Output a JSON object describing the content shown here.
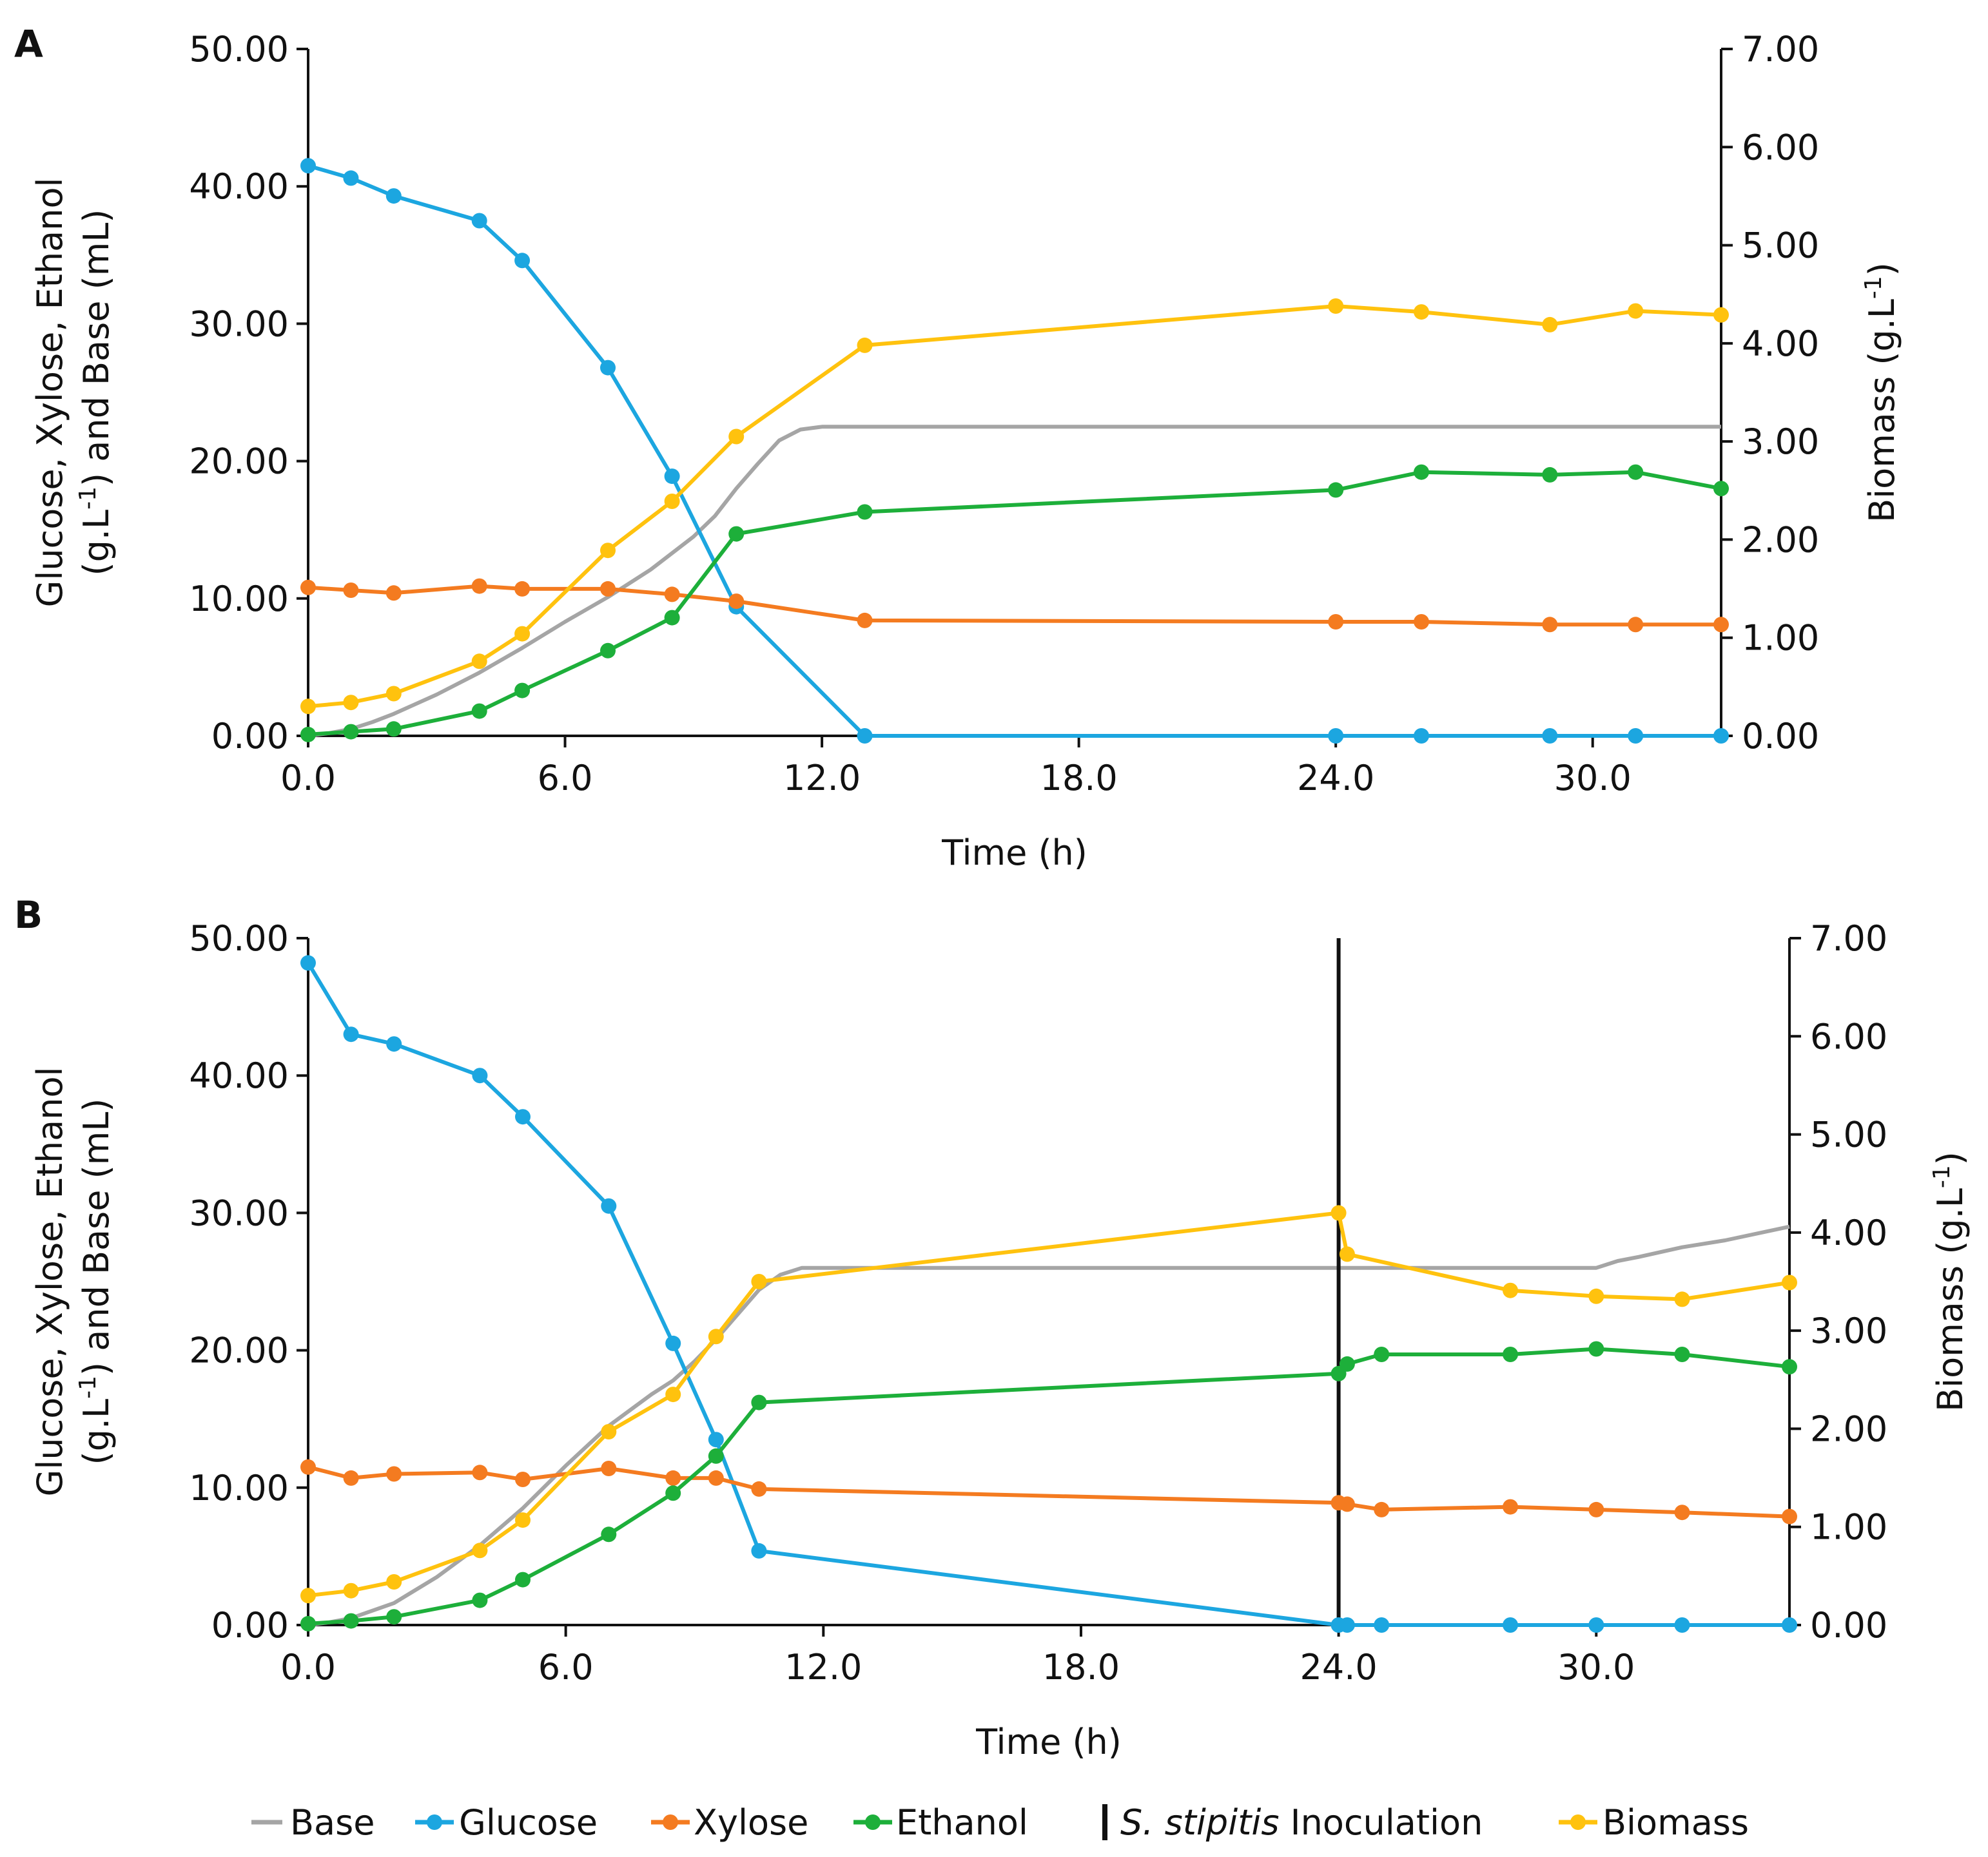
{
  "colors": {
    "base": "#A5A5A5",
    "glucose": "#1CA6E0",
    "xylose": "#F47B20",
    "ethanol": "#1DAF3A",
    "biomass": "#FFC20E",
    "inoculation": "#111111",
    "axis": "#111111"
  },
  "legend": {
    "base": "Base",
    "glucose": "Glucose",
    "xylose": "Xylose",
    "ethanol": "Ethanol",
    "inoculation_italic": "S. stipitis",
    "inoculation_rest": " Inoculation",
    "biomass": "Biomass"
  },
  "chart_data": [
    {
      "type": "line",
      "panel": "A",
      "xlabel": "Time (h)",
      "ylabel_line1": "Glucose, Xylose, Ethanol",
      "ylabel_line2_pre": "(g.L",
      "ylabel_line2_sup": "-1",
      "ylabel_line2_post": ") and Base (mL)",
      "y2label_pre": "Biomass (g.L",
      "y2label_sup": "-1",
      "y2label_post": ")",
      "xlim": [
        0,
        33
      ],
      "ylim": [
        0,
        50
      ],
      "y2lim": [
        0,
        7
      ],
      "xticks": [
        0,
        6,
        12,
        18,
        24,
        30
      ],
      "xtick_labels": [
        "0.0",
        "6.0",
        "12.0",
        "18.0",
        "24.0",
        "30.0"
      ],
      "yticks": [
        0,
        10,
        20,
        30,
        40,
        50
      ],
      "ytick_labels": [
        "0.00",
        "10.00",
        "20.00",
        "30.00",
        "40.00",
        "50.00"
      ],
      "y2ticks": [
        0,
        1,
        2,
        3,
        4,
        5,
        6,
        7
      ],
      "y2tick_labels": [
        "0.00",
        "1.00",
        "2.00",
        "3.00",
        "4.00",
        "5.00",
        "6.00",
        "7.00"
      ],
      "base": {
        "x": [
          0,
          0.5,
          1,
          1.5,
          2,
          3,
          4,
          5,
          6,
          7,
          8,
          9,
          9.5,
          10,
          10.5,
          11,
          11.5,
          12,
          13,
          18,
          24,
          30,
          33
        ],
        "y": [
          0,
          0.2,
          0.5,
          1.0,
          1.6,
          3.0,
          4.6,
          6.4,
          8.3,
          10.1,
          12.1,
          14.5,
          16.0,
          18.0,
          19.8,
          21.5,
          22.3,
          22.5,
          22.5,
          22.5,
          22.5,
          22.5,
          22.5
        ]
      },
      "series": [
        {
          "name": "Glucose",
          "key": "glucose",
          "axis": "left",
          "x": [
            0,
            1,
            2,
            4,
            5,
            7,
            8.5,
            10,
            13,
            24,
            26,
            29,
            31,
            33
          ],
          "y": [
            41.5,
            40.6,
            39.3,
            37.5,
            34.6,
            26.8,
            18.9,
            9.4,
            0,
            0,
            0,
            0,
            0,
            0
          ]
        },
        {
          "name": "Xylose",
          "key": "xylose",
          "axis": "left",
          "x": [
            0,
            1,
            2,
            4,
            5,
            7,
            8.5,
            10,
            13,
            24,
            26,
            29,
            31,
            33
          ],
          "y": [
            10.8,
            10.6,
            10.4,
            10.9,
            10.7,
            10.7,
            10.3,
            9.8,
            8.4,
            8.3,
            8.3,
            8.1,
            8.1,
            8.1
          ]
        },
        {
          "name": "Ethanol",
          "key": "ethanol",
          "axis": "left",
          "x": [
            0,
            1,
            2,
            4,
            5,
            7,
            8.5,
            10,
            13,
            24,
            26,
            29,
            31,
            33
          ],
          "y": [
            0.1,
            0.3,
            0.5,
            1.8,
            3.3,
            6.2,
            8.6,
            14.7,
            16.3,
            17.9,
            19.2,
            19.0,
            19.2,
            18.0
          ]
        },
        {
          "name": "Biomass",
          "key": "biomass",
          "axis": "right",
          "x": [
            0,
            1,
            2,
            4,
            5,
            7,
            8.5,
            10,
            13,
            24,
            26,
            29,
            31,
            33
          ],
          "y": [
            0.3,
            0.34,
            0.43,
            0.76,
            1.04,
            1.89,
            2.39,
            3.05,
            3.98,
            4.38,
            4.32,
            4.19,
            4.33,
            4.29
          ]
        }
      ]
    },
    {
      "type": "line",
      "panel": "B",
      "xlabel": "Time (h)",
      "ylabel_line1": "Glucose, Xylose, Ethanol",
      "ylabel_line2_pre": "(g.L",
      "ylabel_line2_sup": "-1",
      "ylabel_line2_post": ") and Base (mL)",
      "y2label_pre": "Biomass (g.L",
      "y2label_sup": "-1",
      "y2label_post": ")",
      "xlim": [
        0,
        34.5
      ],
      "ylim": [
        0,
        50
      ],
      "y2lim": [
        0,
        7
      ],
      "xticks": [
        0,
        6,
        12,
        18,
        24,
        30
      ],
      "xtick_labels": [
        "0.0",
        "6.0",
        "12.0",
        "18.0",
        "24.0",
        "30.0"
      ],
      "yticks": [
        0,
        10,
        20,
        30,
        40,
        50
      ],
      "ytick_labels": [
        "0.00",
        "10.00",
        "20.00",
        "30.00",
        "40.00",
        "50.00"
      ],
      "y2ticks": [
        0,
        1,
        2,
        3,
        4,
        5,
        6,
        7
      ],
      "y2tick_labels": [
        "0.00",
        "1.00",
        "2.00",
        "3.00",
        "4.00",
        "5.00",
        "6.00",
        "7.00"
      ],
      "inoculation_x": 24,
      "base": {
        "x": [
          0,
          0.5,
          1,
          2,
          3,
          4,
          5,
          6,
          7,
          8,
          8.5,
          9,
          9.5,
          10,
          10.5,
          11,
          11.5,
          12,
          18,
          24,
          30,
          30.5,
          31,
          32,
          33,
          34.5
        ],
        "y": [
          0,
          0.2,
          0.5,
          1.6,
          3.5,
          5.8,
          8.5,
          11.6,
          14.5,
          16.8,
          17.8,
          19.2,
          20.8,
          22.6,
          24.4,
          25.5,
          26.0,
          26.0,
          26.0,
          26.0,
          26.0,
          26.5,
          26.8,
          27.5,
          28.0,
          29.0
        ]
      },
      "series": [
        {
          "name": "Glucose",
          "key": "glucose",
          "axis": "left",
          "x": [
            0,
            1,
            2,
            4,
            5,
            7,
            8.5,
            9.5,
            10.5,
            24,
            24.2,
            25,
            28,
            30,
            32,
            34.5
          ],
          "y": [
            48.2,
            43.0,
            42.3,
            40.0,
            37.0,
            30.5,
            20.5,
            13.5,
            5.4,
            0,
            0,
            0,
            0,
            0,
            0,
            0
          ]
        },
        {
          "name": "Xylose",
          "key": "xylose",
          "axis": "left",
          "x": [
            0,
            1,
            2,
            4,
            5,
            7,
            8.5,
            9.5,
            10.5,
            24,
            24.2,
            25,
            28,
            30,
            32,
            34.5
          ],
          "y": [
            11.5,
            10.7,
            11.0,
            11.1,
            10.6,
            11.4,
            10.7,
            10.7,
            9.9,
            8.9,
            8.8,
            8.4,
            8.6,
            8.4,
            8.2,
            7.9
          ]
        },
        {
          "name": "Ethanol",
          "key": "ethanol",
          "axis": "left",
          "x": [
            0,
            1,
            2,
            4,
            5,
            7,
            8.5,
            9.5,
            10.5,
            24,
            24.2,
            25,
            28,
            30,
            32,
            34.5
          ],
          "y": [
            0.1,
            0.3,
            0.6,
            1.8,
            3.3,
            6.6,
            9.6,
            12.3,
            16.2,
            18.3,
            19.0,
            19.7,
            19.7,
            20.1,
            19.7,
            18.8
          ]
        },
        {
          "name": "Biomass",
          "key": "biomass",
          "axis": "right",
          "x": [
            0,
            1,
            2,
            4,
            5,
            7,
            8.5,
            9.5,
            10.5,
            24,
            24.2,
            28,
            30,
            32,
            34.5
          ],
          "y": [
            0.3,
            0.35,
            0.44,
            0.76,
            1.07,
            1.97,
            2.35,
            2.94,
            3.5,
            4.2,
            3.78,
            3.41,
            3.35,
            3.32,
            3.49
          ]
        }
      ]
    }
  ]
}
